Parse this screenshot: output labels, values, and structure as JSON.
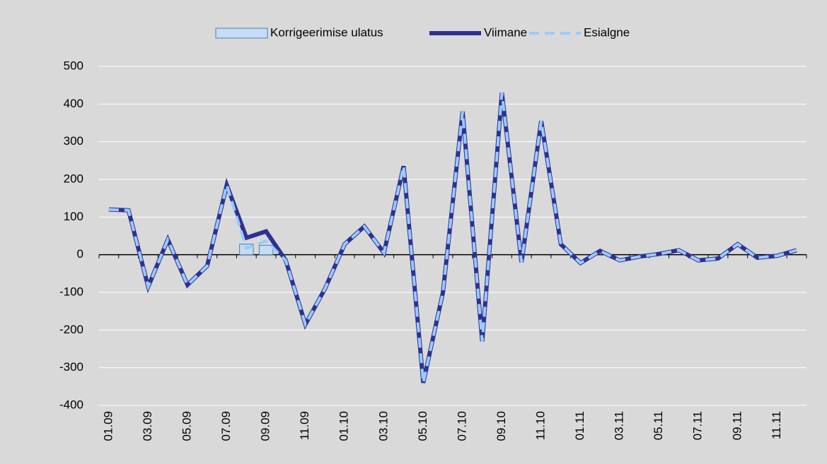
{
  "chart_data": {
    "type": "line",
    "categories": [
      "01.09",
      null,
      "03.09",
      null,
      "05.09",
      null,
      "07.09",
      null,
      "09.09",
      null,
      "11.09",
      null,
      "01.10",
      null,
      "03.10",
      null,
      "05.10",
      null,
      "07.10",
      null,
      "09.10",
      null,
      "11.10",
      null,
      "01.11",
      null,
      "03.11",
      null,
      "05.11",
      null,
      "07.11",
      null,
      "09.11",
      null,
      "11.11",
      null
    ],
    "series": [
      {
        "name": "Korrigeerimise ulatus",
        "kind": "bar",
        "color": "#c5dcf4",
        "edge": "#4a7ebb",
        "values": [
          0,
          0,
          0,
          0,
          0,
          0,
          0,
          28,
          25,
          0,
          0,
          0,
          0,
          0,
          0,
          0,
          0,
          0,
          0,
          0,
          0,
          0,
          0,
          0,
          0,
          0,
          0,
          0,
          0,
          0,
          0,
          0,
          0,
          0,
          0,
          0
        ]
      },
      {
        "name": "Viimane",
        "kind": "line",
        "color": "#2e3192",
        "dashed": false,
        "values": [
          120,
          118,
          -85,
          40,
          -80,
          -30,
          185,
          45,
          62,
          -15,
          -185,
          -90,
          28,
          75,
          5,
          235,
          -340,
          -100,
          380,
          -230,
          430,
          -20,
          355,
          28,
          -22,
          10,
          -15,
          -5,
          2,
          12,
          -15,
          -10,
          28,
          -8,
          -3,
          12
        ]
      },
      {
        "name": "Esialgne",
        "kind": "line",
        "color": "#99ccff",
        "dashed": true,
        "values": [
          120,
          118,
          -85,
          40,
          -80,
          -30,
          185,
          17,
          37,
          -15,
          -185,
          -90,
          28,
          75,
          5,
          235,
          -340,
          -100,
          380,
          -230,
          430,
          -20,
          355,
          28,
          -22,
          10,
          -15,
          -5,
          2,
          12,
          -15,
          -10,
          28,
          -8,
          -3,
          12
        ]
      }
    ],
    "ylim": [
      -400,
      500
    ],
    "yticks": [
      -400,
      -300,
      -200,
      -100,
      0,
      100,
      200,
      300,
      400,
      500
    ],
    "grid": true,
    "legend": "top"
  }
}
